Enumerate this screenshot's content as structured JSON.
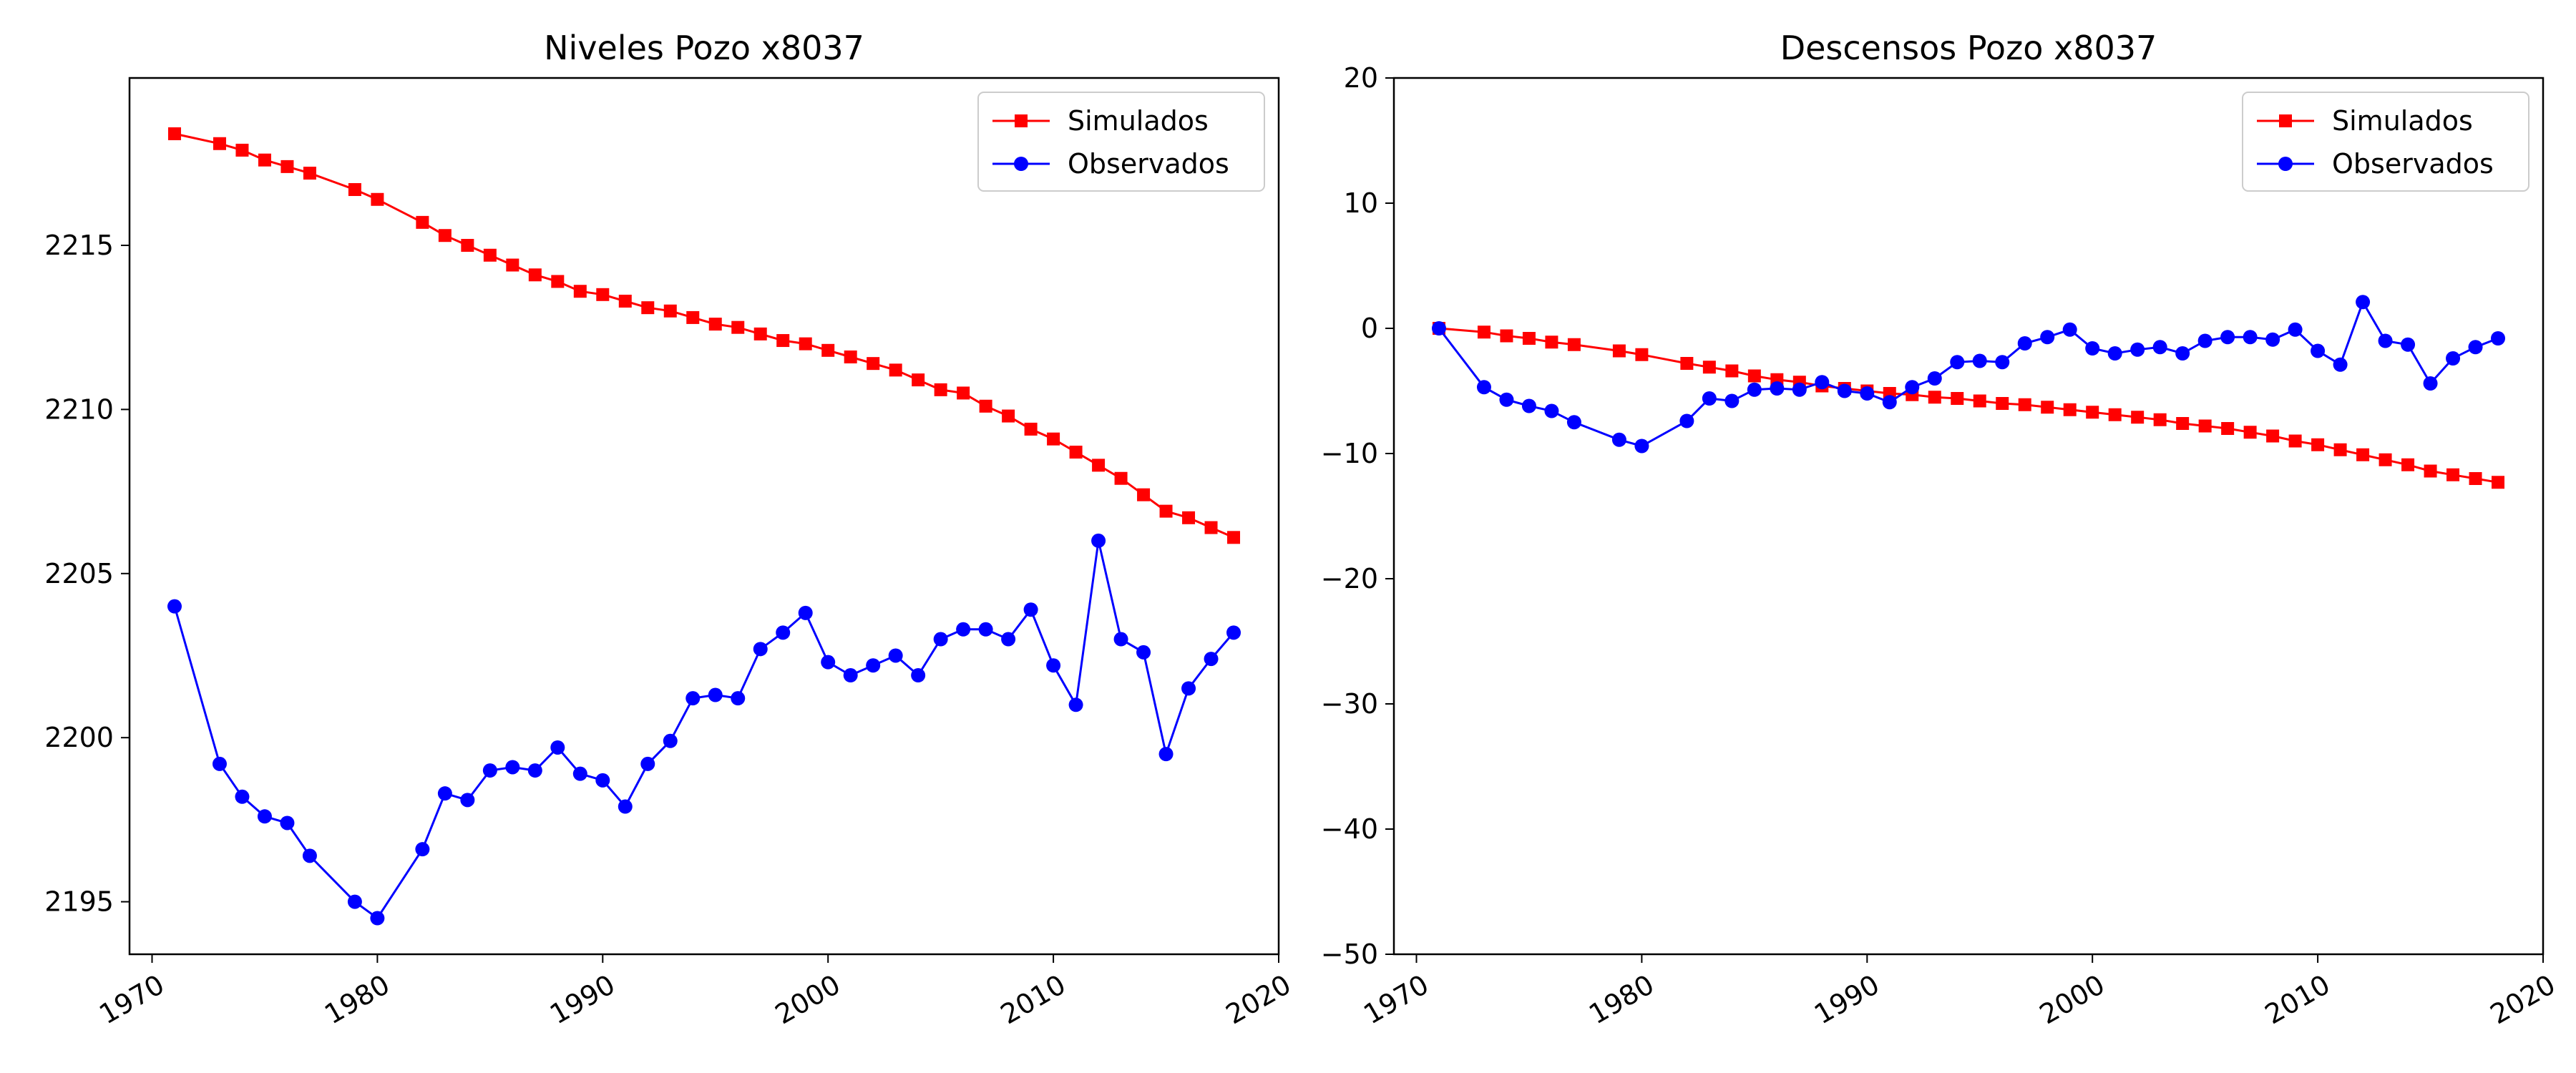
{
  "chart_data": [
    {
      "type": "line",
      "title": "Niveles Pozo x8037",
      "xlabel": "",
      "ylabel": "",
      "xlim": [
        1969,
        2020
      ],
      "ylim": [
        2193.4,
        2220.1
      ],
      "xticks": [
        1970,
        1980,
        1990,
        2000,
        2010,
        2020
      ],
      "yticks": [
        2195,
        2200,
        2205,
        2210,
        2215
      ],
      "grid": false,
      "legend": "top-right",
      "series": [
        {
          "name": "Simulados",
          "color": "#ff0000",
          "marker": "square",
          "x": [
            1971,
            1973,
            1974,
            1975,
            1976,
            1977,
            1979,
            1980,
            1982,
            1983,
            1984,
            1985,
            1986,
            1987,
            1988,
            1989,
            1990,
            1991,
            1992,
            1993,
            1994,
            1995,
            1996,
            1997,
            1998,
            1999,
            2000,
            2001,
            2002,
            2003,
            2004,
            2005,
            2006,
            2007,
            2008,
            2009,
            2010,
            2011,
            2012,
            2013,
            2014,
            2015,
            2016,
            2017,
            2018
          ],
          "values": [
            2218.4,
            2218.1,
            2217.9,
            2217.6,
            2217.4,
            2217.2,
            2216.7,
            2216.4,
            2215.7,
            2215.3,
            2215.0,
            2214.7,
            2214.4,
            2214.1,
            2213.9,
            2213.6,
            2213.5,
            2213.3,
            2213.1,
            2213.0,
            2212.8,
            2212.6,
            2212.5,
            2212.3,
            2212.1,
            2212.0,
            2211.8,
            2211.6,
            2211.4,
            2211.2,
            2210.9,
            2210.6,
            2210.5,
            2210.1,
            2209.8,
            2209.4,
            2209.1,
            2208.7,
            2208.3,
            2207.9,
            2207.4,
            2206.9,
            2206.7,
            2206.4,
            2206.1
          ]
        },
        {
          "name": "Observados",
          "color": "#0000ff",
          "marker": "circle",
          "x": [
            1971,
            1973,
            1974,
            1975,
            1976,
            1977,
            1979,
            1980,
            1982,
            1983,
            1984,
            1985,
            1986,
            1987,
            1988,
            1989,
            1990,
            1991,
            1992,
            1993,
            1994,
            1995,
            1996,
            1997,
            1998,
            1999,
            2000,
            2001,
            2002,
            2003,
            2004,
            2005,
            2006,
            2007,
            2008,
            2009,
            2010,
            2011,
            2012,
            2013,
            2014,
            2015,
            2016,
            2017,
            2018
          ],
          "values": [
            2204.0,
            2199.2,
            2198.2,
            2197.6,
            2197.4,
            2196.4,
            2195.0,
            2194.5,
            2196.6,
            2198.3,
            2198.1,
            2199.0,
            2199.1,
            2199.0,
            2199.7,
            2198.9,
            2198.7,
            2197.9,
            2199.2,
            2199.9,
            2201.2,
            2201.3,
            2201.2,
            2202.7,
            2203.2,
            2203.8,
            2202.3,
            2201.9,
            2202.2,
            2202.5,
            2201.9,
            2203.0,
            2203.3,
            2203.3,
            2203.0,
            2203.9,
            2202.2,
            2201.0,
            2206.0,
            2203.0,
            2202.6,
            2199.5,
            2201.5,
            2202.4,
            2203.2
          ]
        }
      ]
    },
    {
      "type": "line",
      "title": "Descensos Pozo x8037",
      "xlabel": "",
      "ylabel": "",
      "xlim": [
        1969,
        2020
      ],
      "ylim": [
        -50,
        20
      ],
      "xticks": [
        1970,
        1980,
        1990,
        2000,
        2010,
        2020
      ],
      "yticks": [
        -50,
        -40,
        -30,
        -20,
        -10,
        0,
        10,
        20
      ],
      "grid": false,
      "legend": "top-right",
      "series": [
        {
          "name": "Simulados",
          "color": "#ff0000",
          "marker": "square",
          "x": [
            1971,
            1973,
            1974,
            1975,
            1976,
            1977,
            1979,
            1980,
            1982,
            1983,
            1984,
            1985,
            1986,
            1987,
            1988,
            1989,
            1990,
            1991,
            1992,
            1993,
            1994,
            1995,
            1996,
            1997,
            1998,
            1999,
            2000,
            2001,
            2002,
            2003,
            2004,
            2005,
            2006,
            2007,
            2008,
            2009,
            2010,
            2011,
            2012,
            2013,
            2014,
            2015,
            2016,
            2017,
            2018
          ],
          "values": [
            0,
            -0.3,
            -0.6,
            -0.8,
            -1.1,
            -1.3,
            -1.8,
            -2.1,
            -2.8,
            -3.1,
            -3.4,
            -3.8,
            -4.1,
            -4.3,
            -4.6,
            -4.8,
            -5.0,
            -5.2,
            -5.3,
            -5.5,
            -5.6,
            -5.8,
            -6.0,
            -6.1,
            -6.3,
            -6.5,
            -6.7,
            -6.9,
            -7.1,
            -7.3,
            -7.6,
            -7.8,
            -8.0,
            -8.3,
            -8.6,
            -9.0,
            -9.3,
            -9.7,
            -10.1,
            -10.5,
            -10.9,
            -11.4,
            -11.7,
            -12.0,
            -12.3
          ]
        },
        {
          "name": "Observados",
          "color": "#0000ff",
          "marker": "circle",
          "x": [
            1971,
            1973,
            1974,
            1975,
            1976,
            1977,
            1979,
            1980,
            1982,
            1983,
            1984,
            1985,
            1986,
            1987,
            1988,
            1989,
            1990,
            1991,
            1992,
            1993,
            1994,
            1995,
            1996,
            1997,
            1998,
            1999,
            2000,
            2001,
            2002,
            2003,
            2004,
            2005,
            2006,
            2007,
            2008,
            2009,
            2010,
            2011,
            2012,
            2013,
            2014,
            2015,
            2016,
            2017,
            2018
          ],
          "values": [
            0,
            -4.7,
            -5.7,
            -6.2,
            -6.6,
            -7.5,
            -8.9,
            -9.4,
            -7.4,
            -5.6,
            -5.8,
            -4.9,
            -4.8,
            -4.9,
            -4.3,
            -5.0,
            -5.2,
            -5.9,
            -4.7,
            -4.0,
            -2.7,
            -2.6,
            -2.7,
            -1.2,
            -0.7,
            -0.1,
            -1.6,
            -2.0,
            -1.7,
            -1.5,
            -2.0,
            -1.0,
            -0.7,
            -0.7,
            -0.9,
            -0.1,
            -1.8,
            -2.9,
            2.1,
            -1.0,
            -1.3,
            -4.4,
            -2.4,
            -1.5,
            -0.8
          ]
        }
      ]
    }
  ]
}
